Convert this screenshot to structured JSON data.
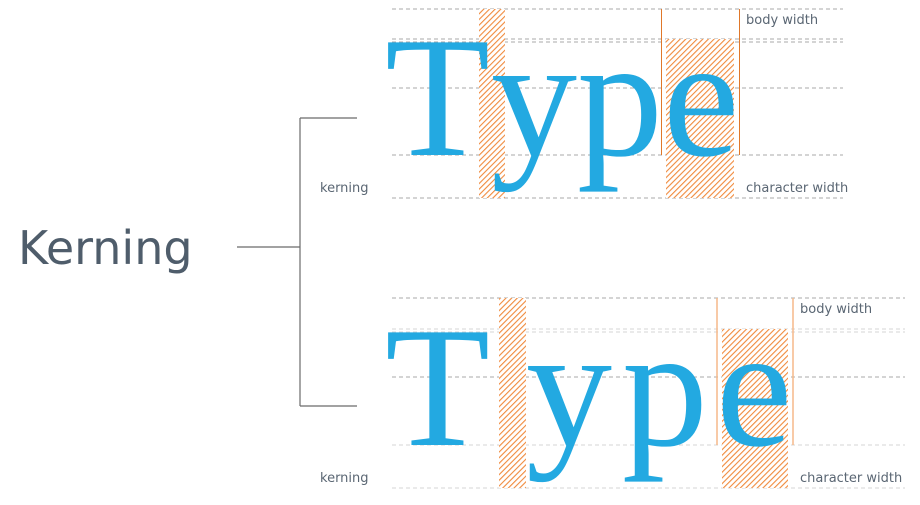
{
  "title": "Kerning",
  "colors": {
    "glyph": "#23a9e1",
    "hatch": "#f08a3c",
    "text": "#4f5d6b",
    "bracket": "#6b6b6b"
  },
  "examples": [
    {
      "word_letters": [
        "T",
        "y",
        "p",
        "e"
      ],
      "labels": {
        "body_width": "body width",
        "kerning": "kerning",
        "character_width": "character width"
      }
    },
    {
      "word_letters": [
        "T",
        "y",
        "p",
        "e"
      ],
      "labels": {
        "body_width": "body width",
        "kerning": "kerning",
        "character_width": "character width"
      }
    }
  ]
}
